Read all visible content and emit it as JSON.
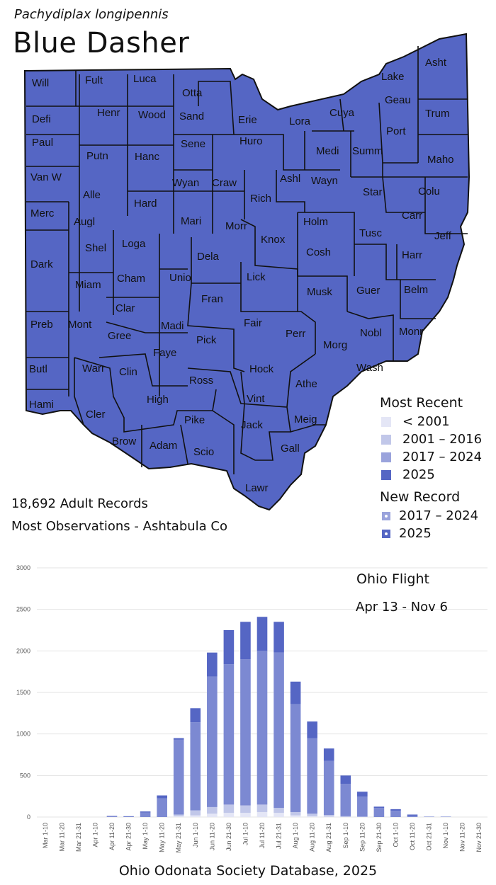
{
  "header": {
    "scientific_name": "Pachydiplax longipennis",
    "common_name": "Blue Dasher"
  },
  "map": {
    "fill_color": "#5566c4",
    "border_color": "#111111",
    "counties": [
      "Will",
      "Fult",
      "Luca",
      "Otta",
      "Lake",
      "Asht",
      "Defi",
      "Henr",
      "Wood",
      "Sand",
      "Erie",
      "Lora",
      "Cuya",
      "Geau",
      "Trum",
      "Paul",
      "Putn",
      "Hanc",
      "Sene",
      "Huro",
      "Medi",
      "Summ",
      "Port",
      "Maho",
      "Van W",
      "Alle",
      "Wyan",
      "Craw",
      "Ashl",
      "Wayn",
      "Star",
      "Colu",
      "Merc",
      "Augl",
      "Hard",
      "Mari",
      "Rich",
      "Morr",
      "Holm",
      "Carr",
      "Tusc",
      "Jeff",
      "Shel",
      "Loga",
      "Dela",
      "Knox",
      "Cosh",
      "Harr",
      "Dark",
      "Miam",
      "Cham",
      "Unio",
      "Lick",
      "Musk",
      "Guer",
      "Belm",
      "Clar",
      "Fran",
      "Fair",
      "Perr",
      "Morg",
      "Nobl",
      "Monr",
      "Preb",
      "Mont",
      "Gree",
      "Madi",
      "Pick",
      "Faye",
      "Hock",
      "Wash",
      "Athe",
      "Butl",
      "Warr",
      "Clin",
      "Ross",
      "Vint",
      "Hami",
      "Cler",
      "High",
      "Pike",
      "Jack",
      "Meig",
      "Brow",
      "Adam",
      "Scio",
      "Gall",
      "Lawr"
    ]
  },
  "legend": {
    "most_recent_title": "Most Recent",
    "most_recent": [
      {
        "label": "< 2001",
        "color": "#e4e6f6"
      },
      {
        "label": "2001 – 2016",
        "color": "#c1c7e9"
      },
      {
        "label": "2017 – 2024",
        "color": "#9aa3dc"
      },
      {
        "label": "2025",
        "color": "#5566c4"
      }
    ],
    "new_record_title": "New Record",
    "new_record": [
      {
        "label": "2017 – 2024",
        "color": "#9aa3dc"
      },
      {
        "label": "2025",
        "color": "#5566c4"
      }
    ]
  },
  "summary": {
    "records": "18,692 Adult Records",
    "most_observations": "Most Observations - Ashtabula Co"
  },
  "chart_data": {
    "type": "bar",
    "stacked": true,
    "title": "Ohio Flight",
    "subtitle": "Apr 13 - Nov 6",
    "ylim": [
      0,
      3000
    ],
    "yticks": [
      0,
      500,
      1000,
      1500,
      2000,
      2500,
      3000
    ],
    "grid": true,
    "categories": [
      "Mar 1-10",
      "Mar 11-20",
      "Mar 21-31",
      "Apr 1-10",
      "Apr 11-20",
      "Apr 21-30",
      "May 1-10",
      "May 11-20",
      "May 21-31",
      "Jun 1-10",
      "Jun 11-20",
      "Jun 21-30",
      "Jul 1-10",
      "Jul 11-20",
      "Jul 21-31",
      "Aug 1-10",
      "Aug 11-20",
      "Aug 21-31",
      "Sep 1-10",
      "Sep 11-20",
      "Sep 21-30",
      "Oct 1-10",
      "Oct 11-20",
      "Oct 21-31",
      "Nov 1-10",
      "Nov 11-20",
      "Nov 21-30"
    ],
    "series": [
      {
        "color": "#e4e6f6",
        "values": [
          0,
          0,
          0,
          0,
          0,
          0,
          0,
          0,
          10,
          20,
          40,
          50,
          50,
          60,
          50,
          20,
          10,
          5,
          0,
          0,
          0,
          0,
          0,
          0,
          0,
          0,
          0
        ]
      },
      {
        "color": "#c1c7e9",
        "values": [
          0,
          0,
          0,
          0,
          0,
          0,
          0,
          0,
          20,
          60,
          80,
          100,
          90,
          90,
          60,
          40,
          30,
          20,
          10,
          5,
          0,
          0,
          0,
          0,
          0,
          0,
          0
        ]
      },
      {
        "color": "#7c89d2",
        "values": [
          0,
          0,
          0,
          0,
          8,
          5,
          55,
          225,
          900,
          1060,
          1570,
          1690,
          1760,
          1850,
          1870,
          1300,
          910,
          650,
          390,
          240,
          110,
          75,
          15,
          5,
          5,
          0,
          0
        ]
      },
      {
        "color": "#5566c4",
        "values": [
          0,
          0,
          0,
          0,
          5,
          5,
          12,
          35,
          20,
          170,
          290,
          410,
          450,
          410,
          370,
          270,
          200,
          150,
          100,
          60,
          15,
          20,
          15,
          0,
          0,
          0,
          0
        ]
      }
    ]
  },
  "footer": {
    "source": "Ohio Odonata Society Database, 2025"
  }
}
